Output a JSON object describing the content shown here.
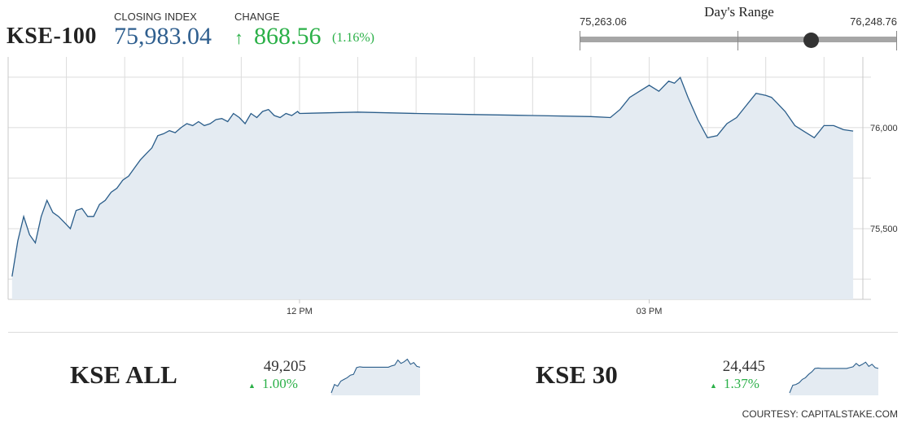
{
  "header": {
    "title": "KSE-100",
    "closing_label": "CLOSING INDEX",
    "closing_value": "75,983.04",
    "change_label": "CHANGE",
    "change_value": "868.56",
    "change_pct": "(1.16%)",
    "change_direction_icon": "arrow-up-icon"
  },
  "days_range": {
    "title": "Day's Range",
    "low_label": "75,263.06",
    "high_label": "76,248.76",
    "low": 75263.06,
    "high": 76248.76,
    "current": 75983.04
  },
  "colors": {
    "line": "#2a5d8a",
    "fill": "#e4ebf2",
    "positive": "#2bb048",
    "value_blue": "#2f5f8f",
    "grid": "#dcdcdc"
  },
  "chart_data": [
    {
      "type": "area",
      "title": "KSE-100",
      "xlabel": "",
      "ylabel": "",
      "x_ticks": [
        "12 PM",
        "03 PM"
      ],
      "y_ticks": [
        75500,
        76000
      ],
      "ylim": [
        75150,
        76350
      ],
      "grid": true,
      "series": [
        {
          "x": [
            "09:32",
            "09:35",
            "09:38",
            "09:41",
            "09:44",
            "09:47",
            "09:50",
            "09:53",
            "09:56",
            "09:59",
            "10:02",
            "10:05",
            "10:08",
            "10:11",
            "10:14",
            "10:17",
            "10:20",
            "10:23",
            "10:26",
            "10:29",
            "10:32",
            "10:35",
            "10:38",
            "10:41",
            "10:44",
            "10:47",
            "10:50",
            "10:53",
            "10:56",
            "10:59",
            "11:02",
            "11:05",
            "11:08",
            "11:11",
            "11:14",
            "11:17",
            "11:20",
            "11:23",
            "11:26",
            "11:29",
            "11:32",
            "11:35",
            "11:38",
            "11:41",
            "11:44",
            "11:47",
            "11:50",
            "11:53",
            "11:56",
            "11:59",
            "12:00",
            "12:30",
            "13:00",
            "13:30",
            "14:00",
            "14:30",
            "14:40",
            "14:45",
            "14:50",
            "14:55",
            "15:00",
            "15:05",
            "15:10",
            "15:13",
            "15:16",
            "15:20",
            "15:25",
            "15:30",
            "15:35",
            "15:40",
            "15:45",
            "15:50",
            "15:55",
            "16:00",
            "16:03",
            "16:06",
            "16:10",
            "16:15",
            "16:20",
            "16:25",
            "16:30",
            "16:35",
            "16:40",
            "16:45"
          ],
          "y": [
            75263,
            75440,
            75560,
            75470,
            75430,
            75560,
            75640,
            75580,
            75560,
            75530,
            75500,
            75590,
            75600,
            75560,
            75560,
            75620,
            75640,
            75680,
            75700,
            75740,
            75760,
            75800,
            75840,
            75870,
            75900,
            75960,
            75970,
            75985,
            75975,
            76000,
            76020,
            76010,
            76030,
            76010,
            76020,
            76040,
            76045,
            76030,
            76070,
            76050,
            76020,
            76070,
            76050,
            76080,
            76090,
            76060,
            76050,
            76070,
            76060,
            76080,
            76070,
            76077,
            76070,
            76065,
            76060,
            76055,
            76050,
            76090,
            76150,
            76180,
            76210,
            76180,
            76230,
            76220,
            76248,
            76150,
            76040,
            75950,
            75960,
            76020,
            76050,
            76110,
            76170,
            76160,
            76150,
            76120,
            76080,
            76010,
            75980,
            75950,
            76010,
            76010,
            75990,
            75983
          ]
        }
      ]
    },
    {
      "type": "area",
      "title": "KSE ALL",
      "series": [
        {
          "x": [
            0,
            1,
            2,
            3,
            4,
            5,
            6,
            7,
            8,
            9,
            10,
            11,
            12,
            13,
            14,
            15,
            16,
            17,
            18,
            19,
            20,
            21,
            22,
            23,
            24,
            25,
            26,
            27,
            28
          ],
          "y": [
            2,
            22,
            18,
            30,
            34,
            38,
            44,
            46,
            62,
            64,
            63,
            63,
            63,
            63,
            63,
            63,
            63,
            63,
            63,
            66,
            68,
            80,
            72,
            76,
            82,
            70,
            74,
            65,
            63
          ]
        }
      ]
    },
    {
      "type": "area",
      "title": "KSE 30",
      "series": [
        {
          "x": [
            0,
            1,
            2,
            3,
            4,
            5,
            6,
            7,
            8,
            9,
            10,
            11,
            12,
            13,
            14,
            15,
            16,
            17,
            18,
            19,
            20,
            21,
            22,
            23,
            24,
            25,
            26,
            27,
            28
          ],
          "y": [
            2,
            20,
            22,
            26,
            34,
            38,
            46,
            52,
            60,
            61,
            60,
            60,
            60,
            60,
            60,
            60,
            60,
            60,
            60,
            62,
            64,
            72,
            66,
            70,
            75,
            65,
            70,
            62,
            60
          ]
        }
      ]
    }
  ],
  "kse_all": {
    "name": "KSE ALL",
    "value": "49,205",
    "change": "1.00%",
    "change_icon": "arrow-up-icon"
  },
  "kse30": {
    "name": "KSE 30",
    "value": "24,445",
    "change": "1.37%",
    "change_icon": "arrow-up-icon"
  },
  "footer": {
    "courtesy": "COURTESY: CAPITALSTAKE.COM"
  }
}
